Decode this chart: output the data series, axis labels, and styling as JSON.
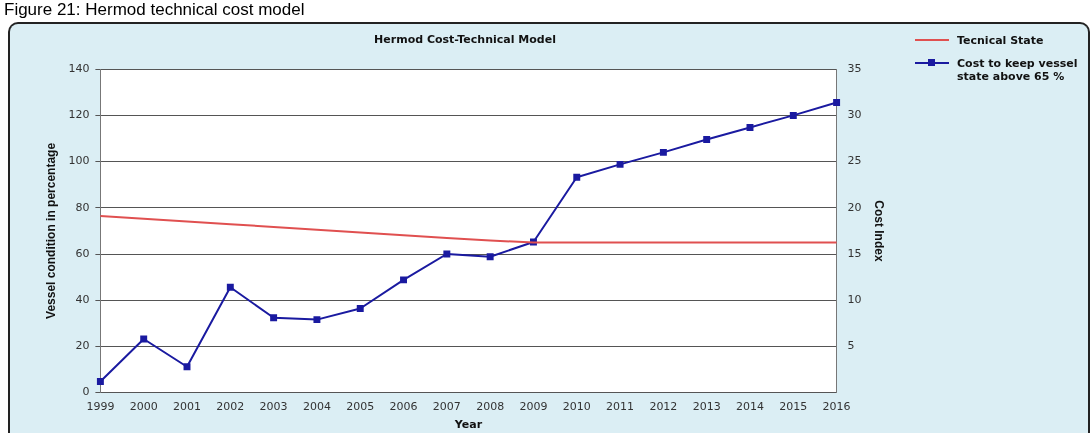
{
  "chart_data": {
    "type": "line",
    "title": "Hermod Cost-Technical Model",
    "annotations": [
      "Figure 21: Hermod technical cost model"
    ],
    "xlabel": "Year",
    "ylabel": "Vessel condition in percentage",
    "y2label": "Cost Index",
    "categories": [
      "1999",
      "2000",
      "2001",
      "2002",
      "2003",
      "2004",
      "2005",
      "2006",
      "2007",
      "2008",
      "2009",
      "2010",
      "2011",
      "2012",
      "2013",
      "2014",
      "2015",
      "2016"
    ],
    "series": [
      {
        "name": "Tecnical State",
        "color": "#e05050",
        "marker": "none",
        "values": [
          76.5,
          75.3,
          74.1,
          72.9,
          71.7,
          70.5,
          69.3,
          68.1,
          66.9,
          65.8,
          65,
          65,
          65,
          65,
          65,
          65,
          65,
          65
        ]
      },
      {
        "name": "Cost to keep vessel state above 65 %",
        "color": "#1a1aa0",
        "axis": "y2",
        "marker": "square",
        "values": [
          1.2,
          5.8,
          2.8,
          11.4,
          8.1,
          7.9,
          9.1,
          12.2,
          15.0,
          14.7,
          16.3,
          23.3,
          24.7,
          26.0,
          27.4,
          28.7,
          30.0,
          31.4
        ]
      }
    ],
    "ylim": [
      0,
      140
    ],
    "yticks": [
      0,
      20,
      40,
      60,
      80,
      100,
      120,
      140
    ],
    "y2lim": [
      0,
      35
    ],
    "y2ticks": [
      {
        "value": 0,
        "label": null
      },
      5,
      10,
      15,
      20,
      25,
      30,
      35
    ],
    "grid": "y",
    "legend": "right"
  }
}
